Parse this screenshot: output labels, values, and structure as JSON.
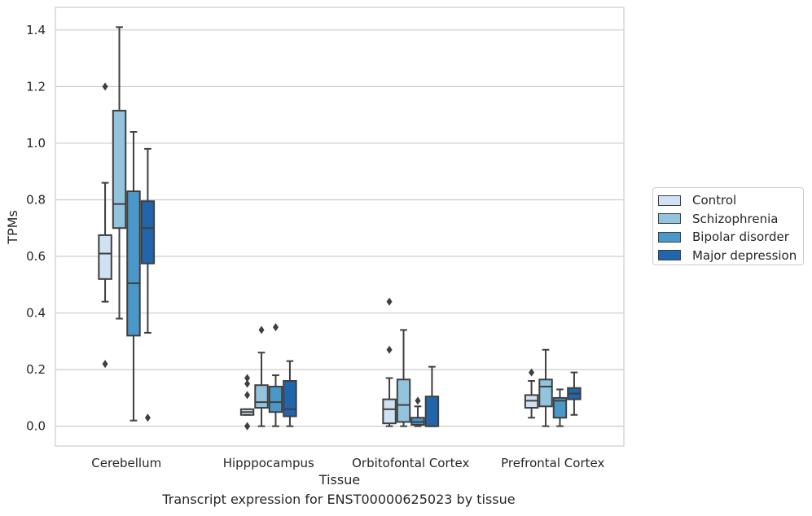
{
  "chart_data": {
    "type": "boxplot",
    "title": "",
    "xlabel": "Tissue",
    "ylabel": "TPMs",
    "caption": "Transcript expression for ENST00000625023 by tissue",
    "ylim": [
      -0.07,
      1.48
    ],
    "yticks": [
      "0.0",
      "0.2",
      "0.4",
      "0.6",
      "0.8",
      "1.0",
      "1.2",
      "1.4"
    ],
    "grid": "horizontal",
    "legend_position": "right",
    "categories": [
      "Cerebellum",
      "Hipppocampus",
      "Orbitofontal Cortex",
      "Prefrontal Cortex"
    ],
    "series": [
      {
        "name": "Control",
        "color": "#cfe1f2",
        "boxes": [
          {
            "whislo": 0.44,
            "q1": 0.52,
            "med": 0.61,
            "q3": 0.675,
            "whishi": 0.86,
            "fliers": [
              1.2,
              0.22
            ]
          },
          {
            "whislo": 0.04,
            "q1": 0.04,
            "med": 0.05,
            "q3": 0.06,
            "whishi": 0.06,
            "fliers": [
              0.17,
              0.15,
              0.11,
              0.0,
              0.0
            ]
          },
          {
            "whislo": 0.0,
            "q1": 0.01,
            "med": 0.06,
            "q3": 0.095,
            "whishi": 0.17,
            "fliers": [
              0.44,
              0.27
            ]
          },
          {
            "whislo": 0.03,
            "q1": 0.065,
            "med": 0.09,
            "q3": 0.11,
            "whishi": 0.16,
            "fliers": [
              0.19
            ]
          }
        ]
      },
      {
        "name": "Schizophrenia",
        "color": "#93c4de",
        "boxes": [
          {
            "whislo": 0.38,
            "q1": 0.7,
            "med": 0.785,
            "q3": 1.115,
            "whishi": 1.41,
            "fliers": []
          },
          {
            "whislo": 0.0,
            "q1": 0.065,
            "med": 0.085,
            "q3": 0.145,
            "whishi": 0.26,
            "fliers": [
              0.34
            ]
          },
          {
            "whislo": 0.0,
            "q1": 0.015,
            "med": 0.075,
            "q3": 0.165,
            "whishi": 0.34,
            "fliers": []
          },
          {
            "whislo": 0.0,
            "q1": 0.07,
            "med": 0.14,
            "q3": 0.165,
            "whishi": 0.27,
            "fliers": []
          }
        ]
      },
      {
        "name": "Bipolar disorder",
        "color": "#4a98c9",
        "boxes": [
          {
            "whislo": 0.02,
            "q1": 0.32,
            "med": 0.505,
            "q3": 0.83,
            "whishi": 1.04,
            "fliers": []
          },
          {
            "whislo": 0.0,
            "q1": 0.05,
            "med": 0.085,
            "q3": 0.14,
            "whishi": 0.18,
            "fliers": [
              0.35
            ]
          },
          {
            "whislo": 0.0,
            "q1": 0.005,
            "med": 0.015,
            "q3": 0.03,
            "whishi": 0.07,
            "fliers": [
              0.09
            ]
          },
          {
            "whislo": 0.0,
            "q1": 0.03,
            "med": 0.09,
            "q3": 0.1,
            "whishi": 0.13,
            "fliers": []
          }
        ]
      },
      {
        "name": "Major depression",
        "color": "#2166ac",
        "boxes": [
          {
            "whislo": 0.33,
            "q1": 0.575,
            "med": 0.7,
            "q3": 0.795,
            "whishi": 0.98,
            "fliers": [
              0.03
            ]
          },
          {
            "whislo": 0.0,
            "q1": 0.035,
            "med": 0.06,
            "q3": 0.16,
            "whishi": 0.23,
            "fliers": []
          },
          {
            "whislo": 0.0,
            "q1": 0.0,
            "med": 0.0,
            "q3": 0.105,
            "whishi": 0.21,
            "fliers": []
          },
          {
            "whislo": 0.04,
            "q1": 0.095,
            "med": 0.115,
            "q3": 0.135,
            "whishi": 0.19,
            "fliers": []
          }
        ]
      }
    ]
  }
}
